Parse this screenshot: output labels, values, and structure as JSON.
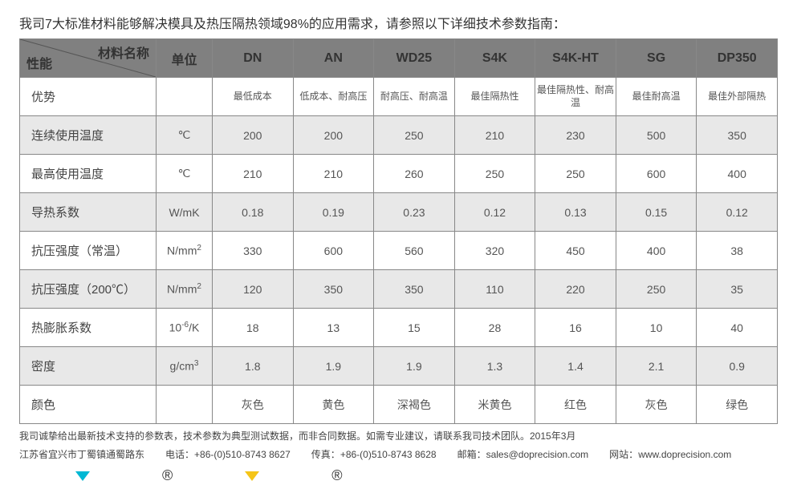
{
  "intro": "我司7大标准材料能够解决模具及热压隔热领域98%的应用需求，请参照以下详细技术参数指南：",
  "header": {
    "corner_perf": "性能",
    "corner_mat": "材料名称",
    "unit": "单位",
    "materials": [
      "DN",
      "AN",
      "WD25",
      "S4K",
      "S4K-HT",
      "SG",
      "DP350"
    ]
  },
  "rows": [
    {
      "label": "优势",
      "unit": "",
      "values": [
        "最低成本",
        "低成本、耐高压",
        "耐高压、耐高温",
        "最佳隔热性",
        "最佳隔热性、耐高温",
        "最佳耐高温",
        "最佳外部隔热"
      ],
      "small": true
    },
    {
      "label": "连续使用温度",
      "unit": "℃",
      "values": [
        "200",
        "200",
        "250",
        "210",
        "230",
        "500",
        "350"
      ]
    },
    {
      "label": "最高使用温度",
      "unit": "℃",
      "values": [
        "210",
        "210",
        "260",
        "250",
        "250",
        "600",
        "400"
      ]
    },
    {
      "label": "导热系数",
      "unit": "W/mK",
      "values": [
        "0.18",
        "0.19",
        "0.23",
        "0.12",
        "0.13",
        "0.15",
        "0.12"
      ]
    },
    {
      "label": "抗压强度（常温）",
      "unit_html": "N/mm<sup>2</sup>",
      "values": [
        "330",
        "600",
        "560",
        "320",
        "450",
        "400",
        "38"
      ]
    },
    {
      "label": "抗压强度（200℃）",
      "unit_html": "N/mm<sup>2</sup>",
      "values": [
        "120",
        "350",
        "350",
        "110",
        "220",
        "250",
        "35"
      ]
    },
    {
      "label": "热膨胀系数",
      "unit_html": "10<sup>-6</sup>/K",
      "values": [
        "18",
        "13",
        "15",
        "28",
        "16",
        "10",
        "40"
      ]
    },
    {
      "label": "密度",
      "unit_html": "g/cm<sup>3</sup>",
      "values": [
        "1.8",
        "1.9",
        "1.9",
        "1.3",
        "1.4",
        "2.1",
        "0.9"
      ]
    },
    {
      "label": "颜色",
      "unit": "",
      "values": [
        "灰色",
        "黄色",
        "深褐色",
        "米黄色",
        "红色",
        "灰色",
        "绿色"
      ]
    }
  ],
  "footnote": "我司诚挚给出最新技术支持的参数表，技术参数为典型测试数据，而非合同数据。如需专业建议，请联系我司技术团队。2015年3月",
  "contact": {
    "address": "江苏省宜兴市丁蜀镇通蜀路东",
    "tel_label": "电话：",
    "tel": "+86-(0)510-8743 8627",
    "fax_label": "传真：",
    "fax": "+86-(0)510-8743 8628",
    "email_label": "邮箱：",
    "email": "sales@doprecision.com",
    "web_label": "网站：",
    "web": "www.doprecision.com"
  },
  "marks": {
    "tri1_color": "#00b8d4",
    "tri2_color": "#f5c518",
    "reg": "®"
  },
  "colors": {
    "header_bg": "#808080",
    "stripe_bg": "#e8e8e8",
    "border": "#888888"
  }
}
